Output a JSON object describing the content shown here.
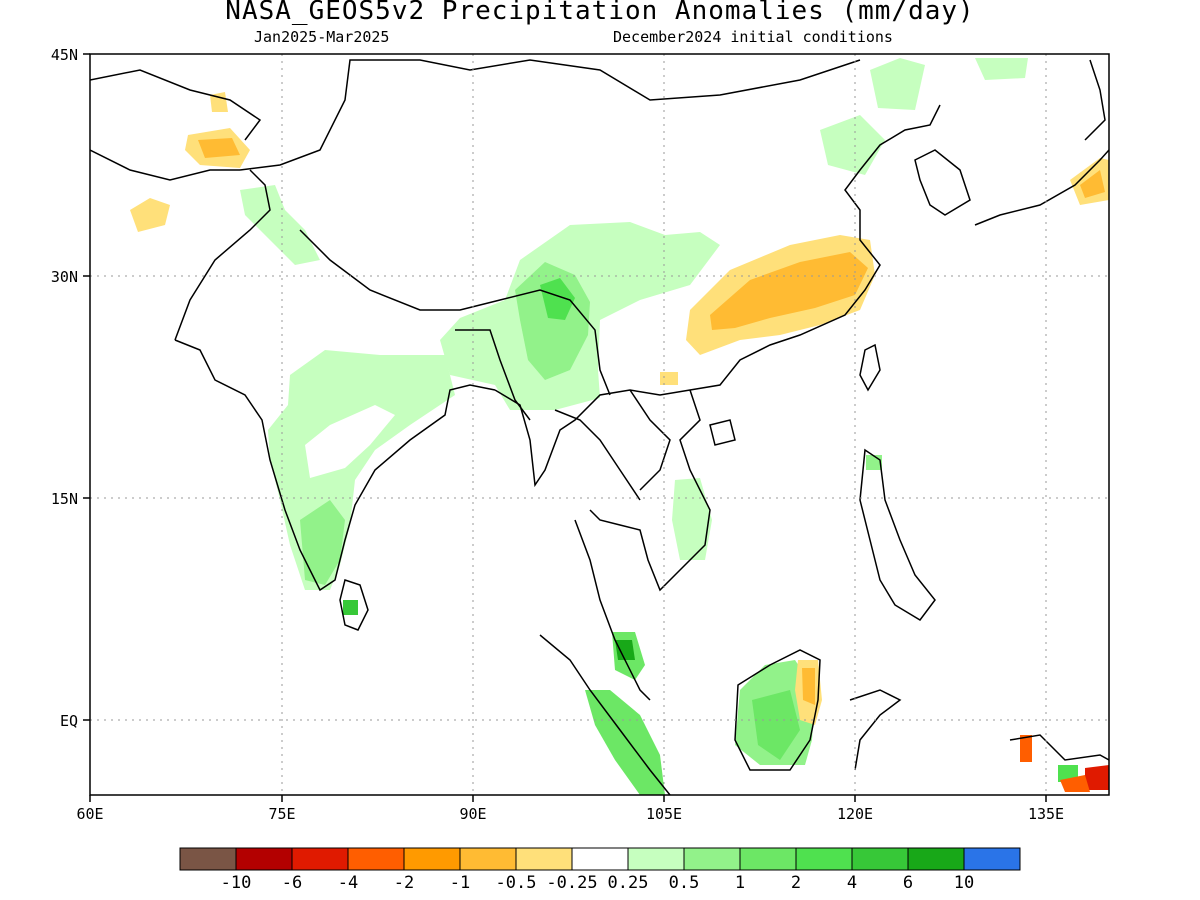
{
  "title": "NASA_GEOS5v2 Precipitation Anomalies (mm/day)",
  "subtitle_left": "Jan2025-Mar2025",
  "subtitle_right": "December2024 initial conditions",
  "map": {
    "lon_range": [
      60,
      140
    ],
    "lat_range": [
      -6,
      45
    ],
    "lon_ticks": [
      "60E",
      "75E",
      "90E",
      "105E",
      "120E",
      "135E"
    ],
    "lat_ticks": [
      "45N",
      "30N",
      "15N",
      "EQ"
    ],
    "gridlines": "dotted"
  },
  "colorbar": {
    "colors": [
      "#7a5545",
      "#b30000",
      "#e01a00",
      "#ff5e00",
      "#ff9a00",
      "#ffbb33",
      "#ffe07a",
      "#ffffff",
      "#c6ffbf",
      "#92f28a",
      "#6ce765",
      "#4fe14f",
      "#37c838",
      "#18a818",
      "#2a74e8"
    ],
    "labels": [
      "-10",
      "-6",
      "-4",
      "-2",
      "-1",
      "-0.5",
      "-0.25",
      "0.25",
      "0.5",
      "1",
      "2",
      "4",
      "6",
      "10"
    ]
  }
}
